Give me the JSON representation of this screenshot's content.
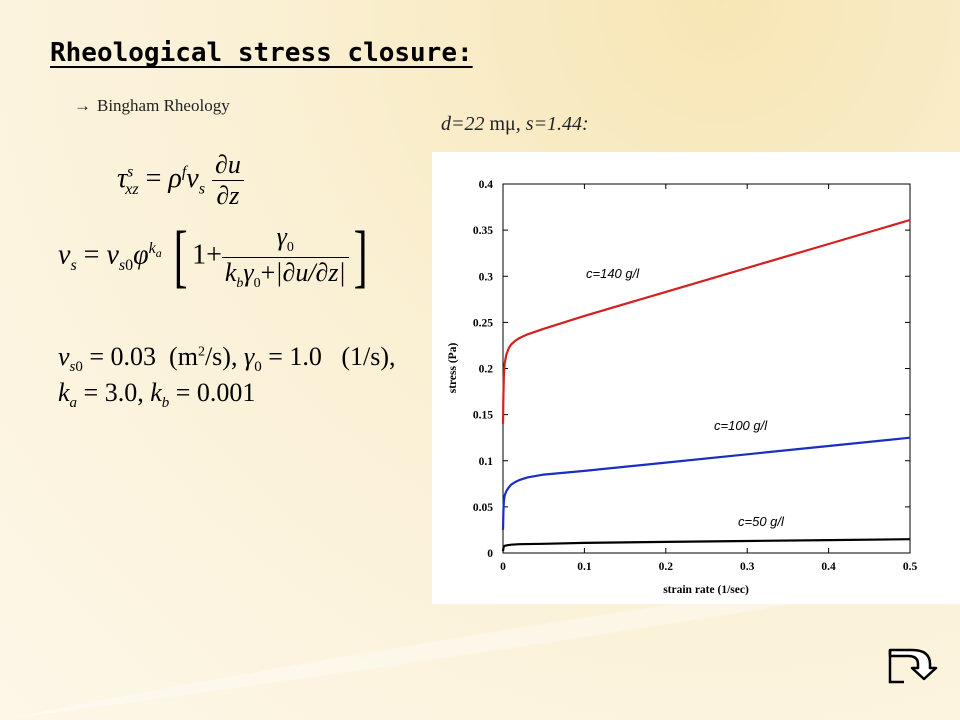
{
  "slide": {
    "title": "Rheological stress closure:",
    "subtitle_arrow": "→",
    "subtitle": "Bingham Rheology",
    "params_prefix": "d=22 ",
    "params_unit": "mμ",
    "params_suffix": ", s=1.44:",
    "equations": {
      "eq3": "ν_s0 = 0.03 (m²/s), γ_0 = 1.0 (1/s),",
      "eq4": "k_a = 3.0, k_b = 0.001"
    },
    "nav_icon": "return-arrow-icon"
  },
  "chart_data": {
    "type": "line",
    "xlabel": "strain rate (1/sec)",
    "ylabel": "stress (Pa)",
    "xlim": [
      0,
      0.5
    ],
    "ylim": [
      0,
      0.4
    ],
    "xticks": [
      0,
      0.1,
      0.2,
      0.3,
      0.4,
      0.5
    ],
    "xtick_labels": [
      "0",
      "0.1",
      "0.2",
      "0.3",
      "0.4",
      "0.5"
    ],
    "yticks": [
      0,
      0.05,
      0.1,
      0.15,
      0.2,
      0.25,
      0.3,
      0.35,
      0.4
    ],
    "ytick_labels": [
      "0",
      "0.05",
      "0.1",
      "0.15",
      "0.2",
      "0.25",
      "0.3",
      "0.35",
      "0.4"
    ],
    "grid": false,
    "series": [
      {
        "name": "c=140 g/l",
        "color": "#d42020",
        "x": [
          0,
          0.0005,
          0.001,
          0.002,
          0.004,
          0.007,
          0.01,
          0.015,
          0.02,
          0.03,
          0.05,
          0.1,
          0.2,
          0.3,
          0.4,
          0.5
        ],
        "y": [
          0.14,
          0.17,
          0.19,
          0.205,
          0.215,
          0.222,
          0.226,
          0.23,
          0.233,
          0.237,
          0.243,
          0.257,
          0.283,
          0.309,
          0.335,
          0.361
        ]
      },
      {
        "name": "c=100 g/l",
        "color": "#1a2fc0",
        "x": [
          0,
          0.0005,
          0.001,
          0.002,
          0.004,
          0.007,
          0.01,
          0.015,
          0.02,
          0.03,
          0.05,
          0.1,
          0.2,
          0.3,
          0.4,
          0.5
        ],
        "y": [
          0.025,
          0.045,
          0.055,
          0.062,
          0.067,
          0.071,
          0.074,
          0.077,
          0.079,
          0.082,
          0.085,
          0.089,
          0.098,
          0.107,
          0.116,
          0.125
        ]
      },
      {
        "name": "c=50 g/l",
        "color": "#000000",
        "x": [
          0,
          0.0005,
          0.001,
          0.003,
          0.006,
          0.01,
          0.02,
          0.05,
          0.1,
          0.2,
          0.3,
          0.4,
          0.5
        ],
        "y": [
          0.002,
          0.005,
          0.007,
          0.008,
          0.0085,
          0.009,
          0.0095,
          0.01,
          0.011,
          0.012,
          0.013,
          0.014,
          0.015
        ]
      }
    ]
  }
}
